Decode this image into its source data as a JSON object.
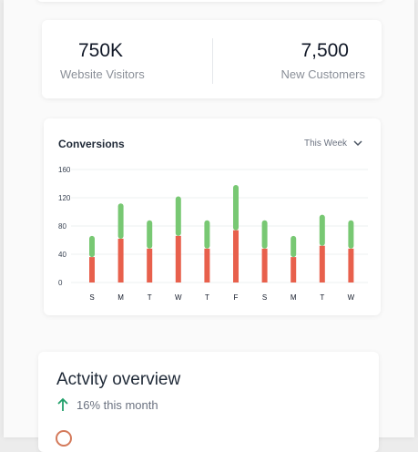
{
  "stats": [
    {
      "value": "750K",
      "label": "Website Visitors"
    },
    {
      "value": "7,500",
      "label": "New Customers"
    }
  ],
  "conversions": {
    "title": "Conversions",
    "period_selected": "This Week",
    "period_icon": "chevron-down-icon"
  },
  "chart_data": {
    "type": "bar",
    "stacked": true,
    "categories": [
      "S",
      "M",
      "T",
      "W",
      "T",
      "F",
      "S",
      "M",
      "T",
      "W"
    ],
    "series": [
      {
        "values": [
          36,
          62,
          48,
          66,
          48,
          74,
          48,
          36,
          52,
          48
        ],
        "color": "#e8604c"
      },
      {
        "values": [
          30,
          50,
          40,
          56,
          40,
          64,
          40,
          30,
          44,
          40
        ],
        "color": "#78c873"
      }
    ],
    "yticks": [
      0,
      40,
      80,
      120,
      160
    ],
    "ylim": [
      0,
      160
    ],
    "grid": true
  },
  "activity": {
    "title": "Actvity overview",
    "change_text": "16% this month",
    "change_icon": "arrow-up-icon",
    "accent_up": "#22a06b"
  }
}
